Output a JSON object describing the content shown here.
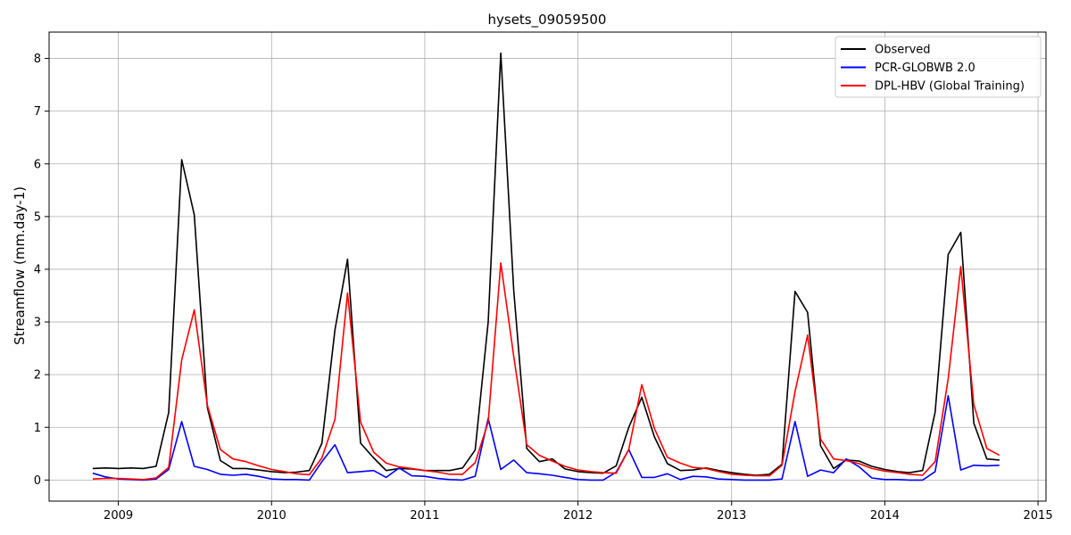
{
  "chart_data": {
    "type": "line",
    "title": "hysets_09059500",
    "xlabel": "",
    "ylabel": "Streamflow (mm.day-1)",
    "xlim": [
      "2008-07-20",
      "2015-01-20"
    ],
    "ylim": [
      -0.4,
      8.5
    ],
    "x_ticks": [
      "2009",
      "2010",
      "2011",
      "2012",
      "2013",
      "2014",
      "2015"
    ],
    "y_ticks": [
      0,
      1,
      2,
      3,
      4,
      5,
      6,
      7,
      8
    ],
    "grid": true,
    "legend_position": "top-right",
    "x": [
      "2008-11-01",
      "2008-12-01",
      "2009-01-01",
      "2009-02-01",
      "2009-03-01",
      "2009-04-01",
      "2009-05-01",
      "2009-06-01",
      "2009-07-01",
      "2009-08-01",
      "2009-09-01",
      "2009-10-01",
      "2009-11-01",
      "2009-12-01",
      "2010-01-01",
      "2010-02-01",
      "2010-03-01",
      "2010-04-01",
      "2010-05-01",
      "2010-06-01",
      "2010-07-01",
      "2010-08-01",
      "2010-09-01",
      "2010-10-01",
      "2010-11-01",
      "2010-12-01",
      "2011-01-01",
      "2011-02-01",
      "2011-03-01",
      "2011-04-01",
      "2011-05-01",
      "2011-06-01",
      "2011-07-01",
      "2011-08-01",
      "2011-09-01",
      "2011-10-01",
      "2011-11-01",
      "2011-12-01",
      "2012-01-01",
      "2012-02-01",
      "2012-03-01",
      "2012-04-01",
      "2012-05-01",
      "2012-06-01",
      "2012-07-01",
      "2012-08-01",
      "2012-09-01",
      "2012-10-01",
      "2012-11-01",
      "2012-12-01",
      "2013-01-01",
      "2013-02-01",
      "2013-03-01",
      "2013-04-01",
      "2013-05-01",
      "2013-06-01",
      "2013-07-01",
      "2013-08-01",
      "2013-09-01",
      "2013-10-01",
      "2013-11-01",
      "2013-12-01",
      "2014-01-01",
      "2014-02-01",
      "2014-03-01",
      "2014-04-01",
      "2014-05-01",
      "2014-06-01",
      "2014-07-01",
      "2014-08-01",
      "2014-09-01",
      "2014-10-01"
    ],
    "series": [
      {
        "name": "Observed",
        "color": "#000000",
        "values": [
          0.22,
          0.23,
          0.22,
          0.23,
          0.22,
          0.26,
          1.28,
          6.08,
          5.03,
          1.38,
          0.37,
          0.22,
          0.22,
          0.19,
          0.16,
          0.14,
          0.15,
          0.18,
          0.7,
          2.85,
          4.19,
          0.7,
          0.42,
          0.18,
          0.22,
          0.21,
          0.18,
          0.18,
          0.18,
          0.23,
          0.57,
          3.0,
          8.1,
          3.6,
          0.6,
          0.35,
          0.4,
          0.21,
          0.16,
          0.14,
          0.13,
          0.27,
          1.0,
          1.57,
          0.82,
          0.31,
          0.18,
          0.19,
          0.23,
          0.18,
          0.14,
          0.11,
          0.09,
          0.11,
          0.3,
          3.58,
          3.18,
          0.65,
          0.22,
          0.38,
          0.36,
          0.26,
          0.2,
          0.16,
          0.14,
          0.18,
          1.29,
          4.28,
          4.7,
          1.08,
          0.4,
          0.38
        ]
      },
      {
        "name": "PCR-GLOBWB 2.0",
        "color": "#0000ff",
        "values": [
          0.13,
          0.06,
          0.02,
          0.01,
          0.0,
          0.02,
          0.2,
          1.11,
          0.26,
          0.2,
          0.11,
          0.09,
          0.11,
          0.07,
          0.02,
          0.01,
          0.01,
          0.0,
          0.35,
          0.67,
          0.14,
          0.16,
          0.18,
          0.05,
          0.23,
          0.08,
          0.07,
          0.03,
          0.01,
          0.0,
          0.07,
          1.17,
          0.2,
          0.38,
          0.14,
          0.12,
          0.09,
          0.05,
          0.01,
          0.0,
          0.0,
          0.15,
          0.58,
          0.05,
          0.05,
          0.12,
          0.01,
          0.07,
          0.06,
          0.02,
          0.01,
          0.0,
          0.0,
          0.0,
          0.02,
          1.11,
          0.07,
          0.19,
          0.14,
          0.4,
          0.25,
          0.04,
          0.01,
          0.01,
          0.0,
          0.0,
          0.16,
          1.6,
          0.19,
          0.28,
          0.27,
          0.28
        ]
      },
      {
        "name": "DPL-HBV (Global Training)",
        "color": "#ff0000",
        "values": [
          0.02,
          0.03,
          0.03,
          0.02,
          0.01,
          0.04,
          0.24,
          2.28,
          3.23,
          1.42,
          0.58,
          0.4,
          0.35,
          0.27,
          0.2,
          0.16,
          0.12,
          0.1,
          0.42,
          1.15,
          3.55,
          1.1,
          0.53,
          0.32,
          0.25,
          0.22,
          0.18,
          0.15,
          0.11,
          0.11,
          0.33,
          1.1,
          4.12,
          2.35,
          0.67,
          0.47,
          0.36,
          0.26,
          0.19,
          0.16,
          0.14,
          0.13,
          0.58,
          1.81,
          0.98,
          0.43,
          0.32,
          0.24,
          0.22,
          0.16,
          0.11,
          0.09,
          0.08,
          0.08,
          0.28,
          1.68,
          2.75,
          0.78,
          0.4,
          0.37,
          0.31,
          0.22,
          0.17,
          0.14,
          0.11,
          0.09,
          0.35,
          1.92,
          4.05,
          1.43,
          0.6,
          0.47
        ]
      }
    ]
  }
}
